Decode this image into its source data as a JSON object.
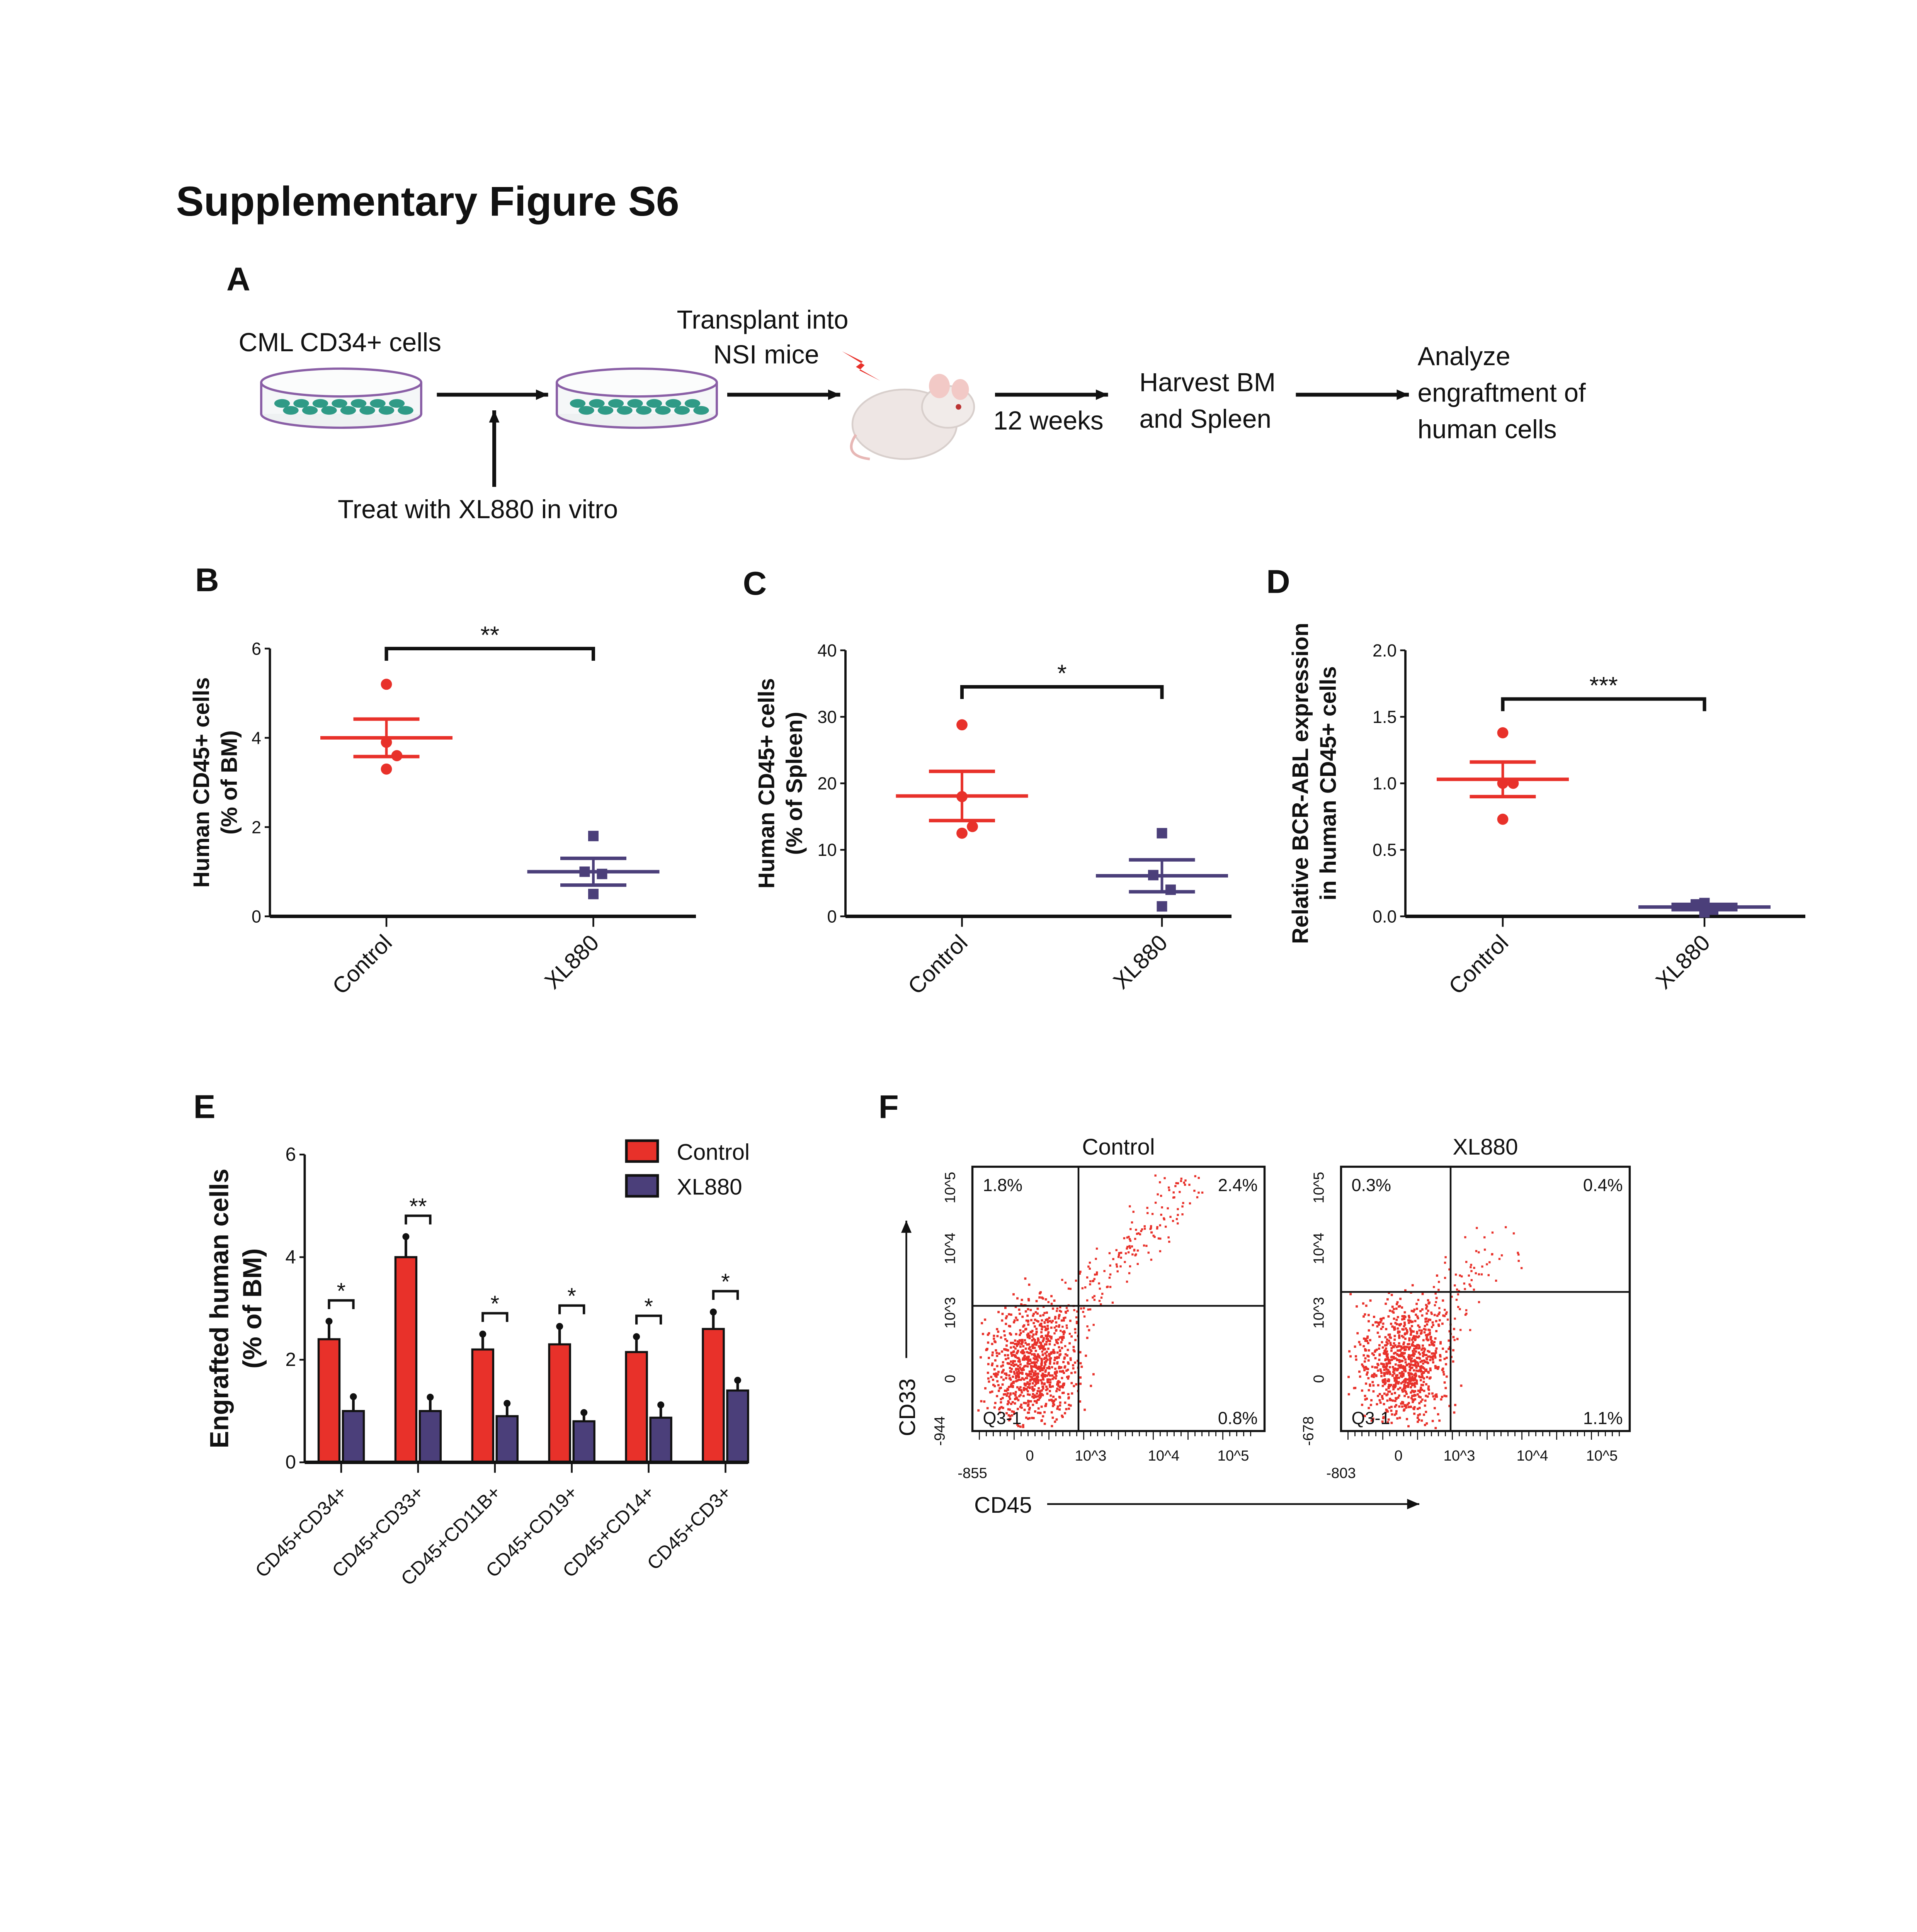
{
  "title": "Supplementary Figure S6",
  "colors": {
    "control": "#e8312a",
    "xl880": "#4b3f7a",
    "axis": "#111111"
  },
  "panelA": {
    "label": "A",
    "cells": "CML CD34+ cells",
    "treat": "Treat with XL880 in vitro",
    "transplant1": "Transplant into",
    "transplant2": "NSI mice",
    "weeks": "12 weeks",
    "harvest1": "Harvest BM",
    "harvest2": "and Spleen",
    "analyze1": "Analyze",
    "analyze2": "engraftment of",
    "analyze3": "human cells",
    "icons": [
      "petri-dish-icon",
      "arrow-right-icon",
      "arrow-up-icon",
      "mouse-icon",
      "injection-icon"
    ]
  },
  "chart_data": [
    {
      "panel": "B",
      "type": "scatter",
      "ylabel1": "Human CD45+ cells",
      "ylabel2": "(% of BM)",
      "ylim": [
        0,
        6
      ],
      "yticks": [
        "0",
        "2",
        "4",
        "6"
      ],
      "ytick_values": [
        0,
        2,
        4,
        6
      ],
      "categories": [
        "Control",
        "XL880"
      ],
      "series": [
        {
          "name": "Control",
          "points": [
            5.2,
            3.9,
            3.6,
            3.3
          ],
          "mean": 4.0,
          "sem": 0.42
        },
        {
          "name": "XL880",
          "points": [
            1.8,
            1.0,
            0.95,
            0.5
          ],
          "mean": 1.0,
          "sem": 0.3
        }
      ],
      "significance": "**"
    },
    {
      "panel": "C",
      "type": "scatter",
      "ylabel1": "Human CD45+ cells",
      "ylabel2": "(% of Spleen)",
      "ylim": [
        0,
        40
      ],
      "yticks": [
        "0",
        "10",
        "20",
        "30",
        "40"
      ],
      "ytick_values": [
        0,
        10,
        20,
        30,
        40
      ],
      "categories": [
        "Control",
        "XL880"
      ],
      "series": [
        {
          "name": "Control",
          "points": [
            28.8,
            18.0,
            13.5,
            12.5
          ],
          "mean": 18.1,
          "sem": 3.7
        },
        {
          "name": "XL880",
          "points": [
            12.5,
            6.2,
            4.0,
            1.5
          ],
          "mean": 6.1,
          "sem": 2.4
        }
      ],
      "significance": "*"
    },
    {
      "panel": "D",
      "type": "scatter",
      "ylabel1": "Relative BCR-ABL expression",
      "ylabel2": "in human CD45+ cells",
      "ylim": [
        0,
        2.0
      ],
      "yticks": [
        "0.0",
        "0.5",
        "1.0",
        "1.5",
        "2.0"
      ],
      "ytick_values": [
        0,
        0.5,
        1.0,
        1.5,
        2.0
      ],
      "categories": [
        "Control",
        "XL880"
      ],
      "series": [
        {
          "name": "Control",
          "points": [
            1.38,
            1.0,
            1.0,
            0.73
          ],
          "mean": 1.03,
          "sem": 0.13
        },
        {
          "name": "XL880",
          "points": [
            0.1,
            0.09,
            0.05,
            0.03
          ],
          "mean": 0.07,
          "sem": 0.02
        }
      ],
      "significance": "***"
    },
    {
      "panel": "E",
      "type": "bar",
      "ylabel1": "Engrafted human cells",
      "ylabel2": "(% of BM)",
      "ylim": [
        0,
        6
      ],
      "yticks": [
        "0",
        "2",
        "4",
        "6"
      ],
      "ytick_values": [
        0,
        2,
        4,
        6
      ],
      "categories": [
        "CD45+CD34+",
        "CD45+CD33+",
        "CD45+CD11B+",
        "CD45+CD19+",
        "CD45+CD14+",
        "CD45+CD3+"
      ],
      "series": [
        {
          "name": "Control",
          "values": [
            2.4,
            4.0,
            2.2,
            2.3,
            2.15,
            2.6
          ],
          "errors": [
            0.35,
            0.4,
            0.3,
            0.35,
            0.3,
            0.33
          ]
        },
        {
          "name": "XL880",
          "values": [
            1.0,
            1.0,
            0.9,
            0.8,
            0.87,
            1.4
          ],
          "errors": [
            0.28,
            0.27,
            0.25,
            0.17,
            0.25,
            0.2
          ]
        }
      ],
      "significance": [
        "*",
        "**",
        "*",
        "*",
        "*",
        "*"
      ],
      "legend": "top-right"
    },
    {
      "panel": "F",
      "type": "scatter",
      "xlabel": "CD45",
      "ylabel": "CD33",
      "plots": [
        {
          "title": "Control",
          "q1": "1.8%",
          "q2": "2.4%",
          "q3": "Q3-1",
          "q4": "0.8%",
          "xmin": "-855",
          "ymin": "-944",
          "xticks": [
            "0",
            "10^3",
            "10^4",
            "10^5"
          ],
          "yticks": [
            "0",
            "10^3",
            "10^4",
            "10^5"
          ]
        },
        {
          "title": "XL880",
          "q1": "0.3%",
          "q2": "0.4%",
          "q3": "Q3-1",
          "q4": "1.1%",
          "xmin": "-803",
          "ymin": "-678",
          "xticks": [
            "0",
            "10^3",
            "10^4",
            "10^5"
          ],
          "yticks": [
            "0",
            "10^3",
            "10^4",
            "10^5"
          ]
        }
      ]
    }
  ],
  "panelLabels": {
    "B": "B",
    "C": "C",
    "D": "D",
    "E": "E",
    "F": "F"
  }
}
